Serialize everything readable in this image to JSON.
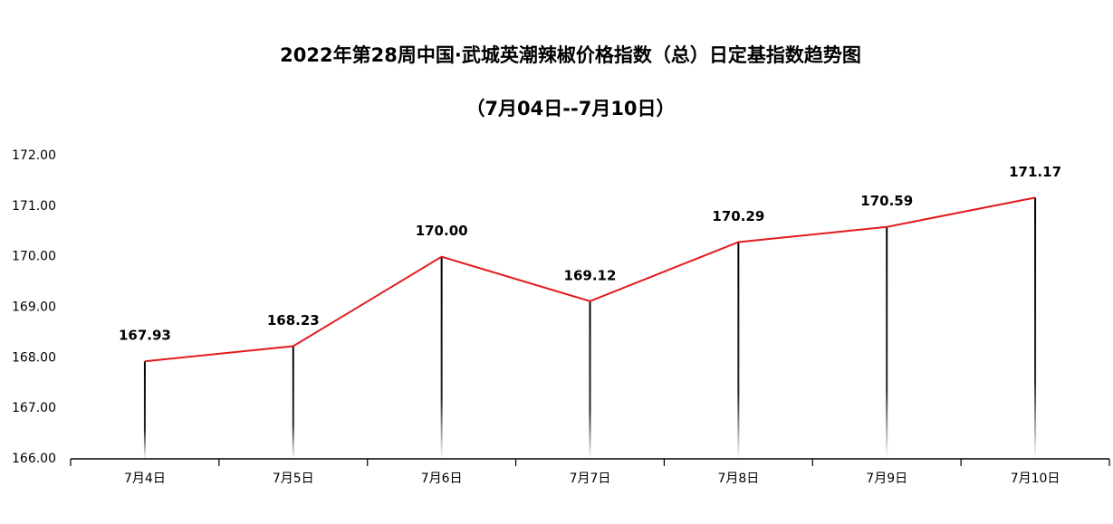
{
  "chart_data": {
    "type": "line",
    "title": "2022年第28周中国·武城英潮辣椒价格指数（总）日定基指数趋势图",
    "subtitle": "（7月04日--7月10日）",
    "categories": [
      "7月4日",
      "7月5日",
      "7月6日",
      "7月7日",
      "7月8日",
      "7月9日",
      "7月10日"
    ],
    "values": [
      167.93,
      168.23,
      170,
      169.12,
      170.29,
      170.59,
      171.17
    ],
    "value_labels": [
      "167.93",
      "168.23",
      "170.00",
      "169.12",
      "170.29",
      "170.59",
      "171.17"
    ],
    "color": "#e31a1c",
    "ylim": [
      166,
      172
    ],
    "yticks": [
      {
        "value": 166,
        "label": "166.00"
      },
      {
        "value": 167,
        "label": "167.00"
      },
      {
        "value": 168,
        "label": "168.00"
      },
      {
        "value": 169,
        "label": "169.00"
      },
      {
        "value": 170,
        "label": "170.00"
      },
      {
        "value": 171,
        "label": "171.00"
      },
      {
        "value": 172,
        "label": "172.00"
      }
    ],
    "grid": false
  }
}
